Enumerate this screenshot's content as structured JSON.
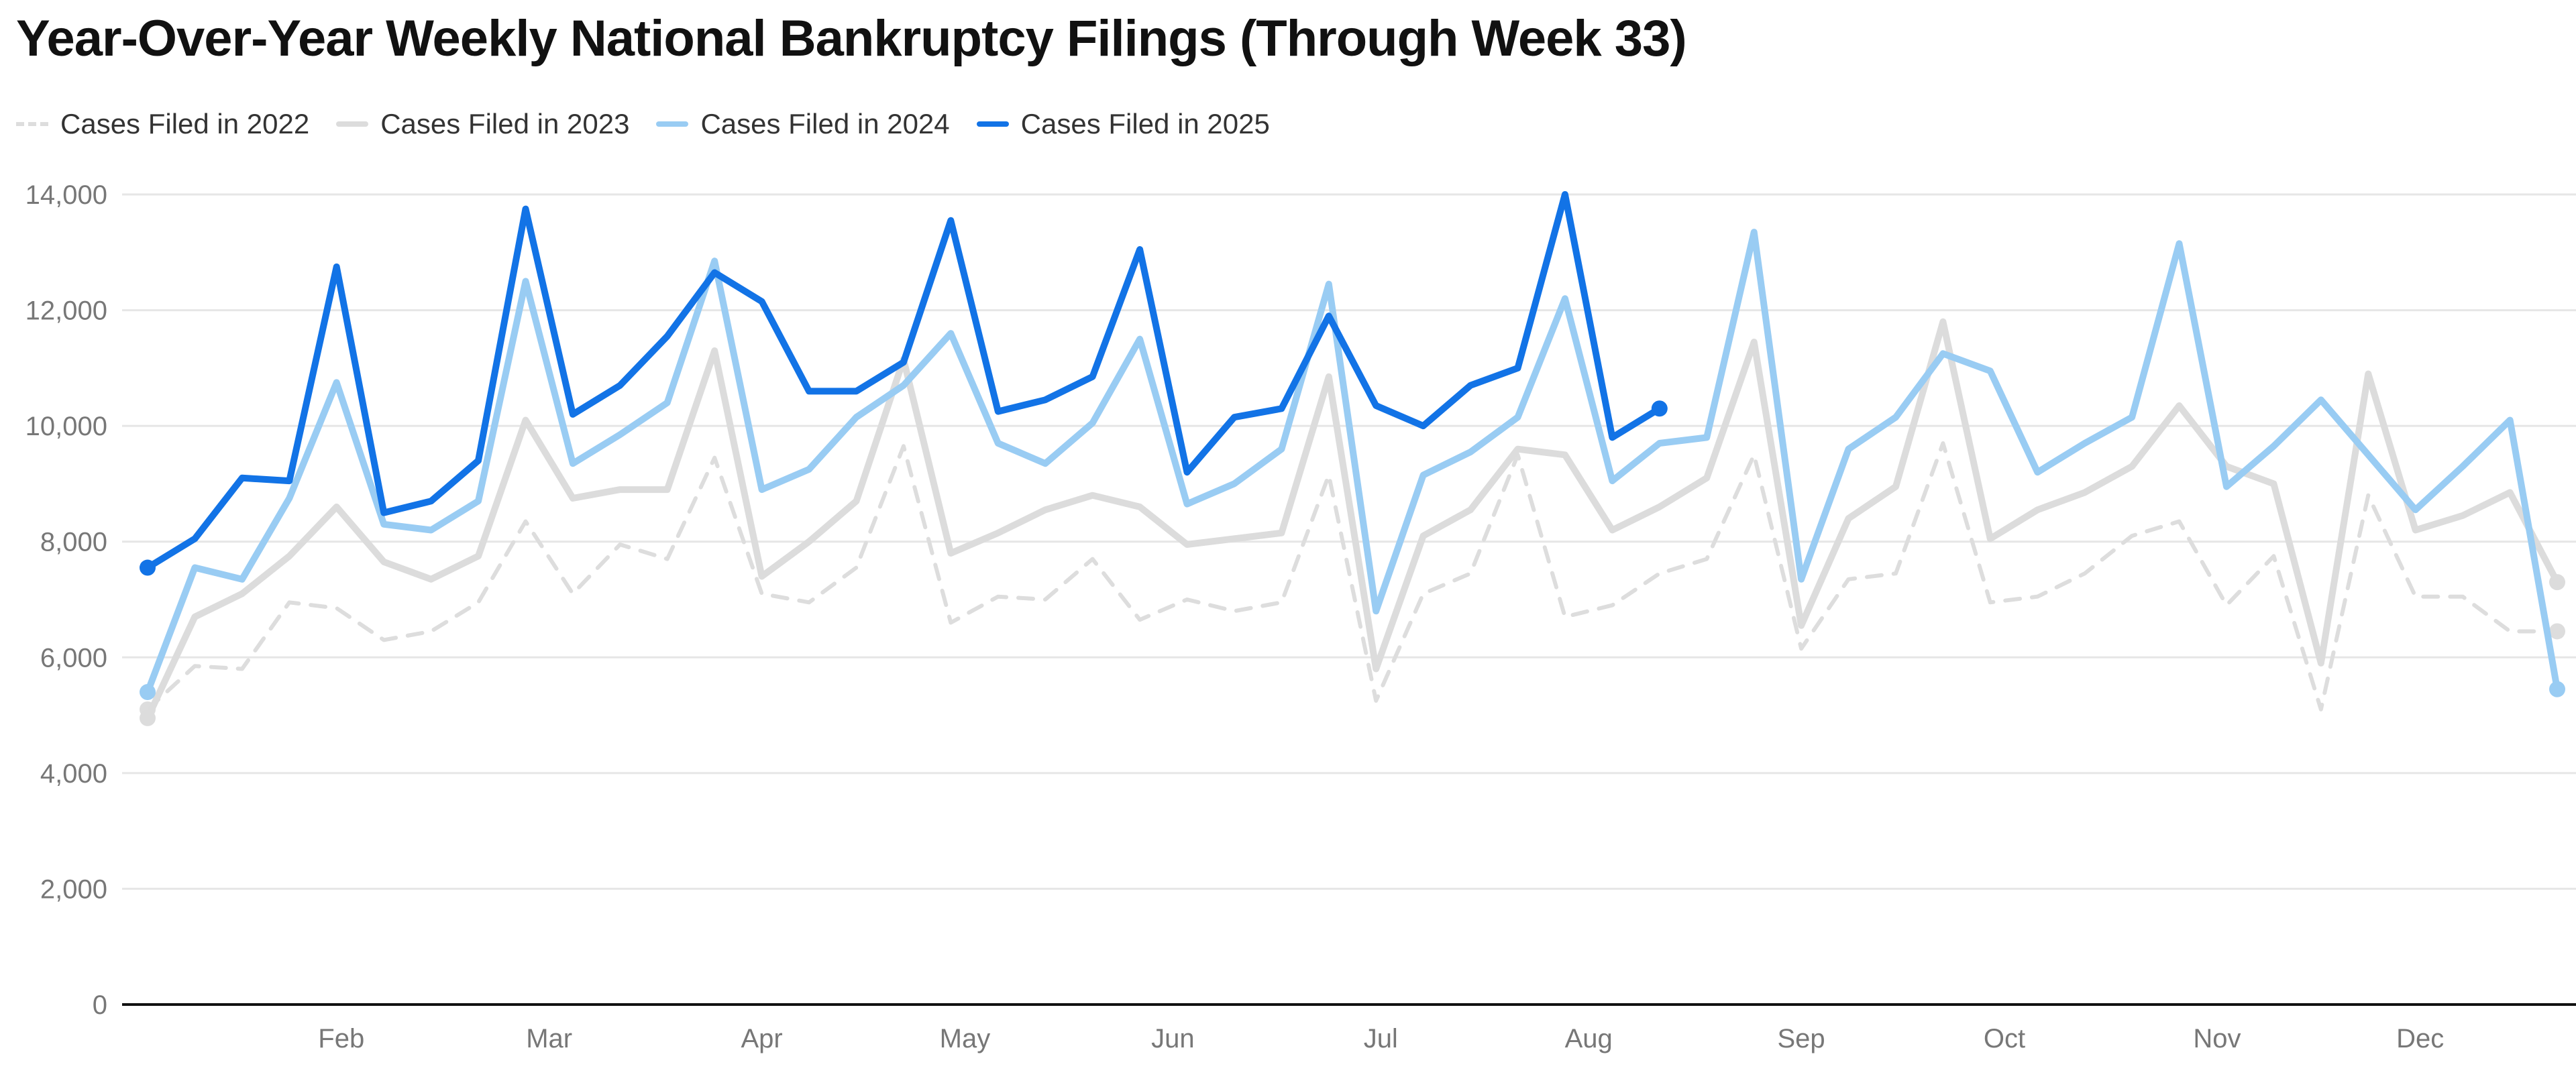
{
  "colors": {
    "s2022": "#dddddd",
    "s2023": "#dcdcdc",
    "s2024": "#99ccf3",
    "s2025": "#1273e6",
    "grid": "#e6e6e6",
    "axis": "#111111"
  },
  "chart_data": {
    "type": "line",
    "title": "Year-Over-Year Weekly National Bankruptcy Filings (Through Week 33)",
    "xlabel": "",
    "ylabel": "",
    "ylim": [
      0,
      14000
    ],
    "xlim": [
      1,
      52
    ],
    "y_ticks": [
      0,
      2000,
      4000,
      6000,
      8000,
      10000,
      12000,
      14000
    ],
    "y_tick_labels": [
      "0",
      "2,000",
      "4,000",
      "6,000",
      "8,000",
      "10,000",
      "12,000",
      "14,000"
    ],
    "x_tick_labels": [
      "Feb",
      "Mar",
      "Apr",
      "May",
      "Jun",
      "Jul",
      "Aug",
      "Sep",
      "Oct",
      "Nov",
      "Dec"
    ],
    "x_tick_positions": [
      5.1,
      9.5,
      14.0,
      18.3,
      22.7,
      27.1,
      31.5,
      36.0,
      40.3,
      44.8,
      49.1
    ],
    "grid": true,
    "legend_position": "top-left",
    "series": [
      {
        "name": "Cases Filed in 2022",
        "style": "dashed",
        "color": "#dddddd",
        "values": [
          5100,
          5850,
          5800,
          6950,
          6850,
          6300,
          6450,
          6950,
          8350,
          7100,
          7950,
          7700,
          9450,
          7100,
          6950,
          7550,
          9650,
          6600,
          7050,
          7000,
          7700,
          6650,
          7000,
          6800,
          6950,
          9150,
          5250,
          7100,
          7450,
          9500,
          6700,
          6900,
          7450,
          7700,
          9500,
          6150,
          7350,
          7450,
          9700,
          6950,
          7050,
          7450,
          8100,
          8350,
          6900,
          7750,
          5100,
          8800,
          7050,
          7050,
          6450,
          6450
        ]
      },
      {
        "name": "Cases Filed in 2023",
        "style": "solid",
        "color": "#dcdcdc",
        "values": [
          4950,
          6700,
          7100,
          7750,
          8600,
          7650,
          7350,
          7750,
          10100,
          8750,
          8900,
          8900,
          11300,
          7400,
          8000,
          8700,
          11150,
          7800,
          8150,
          8550,
          8800,
          8600,
          7950,
          8050,
          8150,
          10850,
          5800,
          8100,
          8550,
          9600,
          9500,
          8200,
          8600,
          9100,
          11450,
          6550,
          8400,
          8950,
          11800,
          8050,
          8550,
          8850,
          9300,
          10350,
          9300,
          9000,
          5900,
          10900,
          8200,
          8450,
          8850,
          7300
        ]
      },
      {
        "name": "Cases Filed in 2024",
        "style": "solid",
        "color": "#99ccf3",
        "values": [
          5400,
          7550,
          7350,
          8750,
          10750,
          8300,
          8200,
          8700,
          12500,
          9350,
          9850,
          10400,
          12850,
          8900,
          9250,
          10150,
          10700,
          11600,
          9700,
          9350,
          10050,
          11500,
          8650,
          9000,
          9600,
          12450,
          6800,
          9150,
          9550,
          10150,
          12200,
          9050,
          9700,
          9800,
          13350,
          7350,
          9600,
          10150,
          11250,
          10950,
          9200,
          9700,
          10150,
          13150,
          8950,
          9650,
          10450,
          9500,
          8550,
          9300,
          10100,
          5450
        ]
      },
      {
        "name": "Cases Filed in 2025",
        "style": "solid",
        "color": "#1273e6",
        "values": [
          7550,
          8050,
          9100,
          9050,
          12750,
          8500,
          8700,
          9400,
          13750,
          10200,
          10700,
          11550,
          12650,
          12150,
          10600,
          10600,
          11100,
          13550,
          10250,
          10450,
          10850,
          13050,
          9200,
          10150,
          10300,
          11900,
          10350,
          10000,
          10700,
          11000,
          14000,
          9800,
          10300
        ]
      }
    ]
  }
}
